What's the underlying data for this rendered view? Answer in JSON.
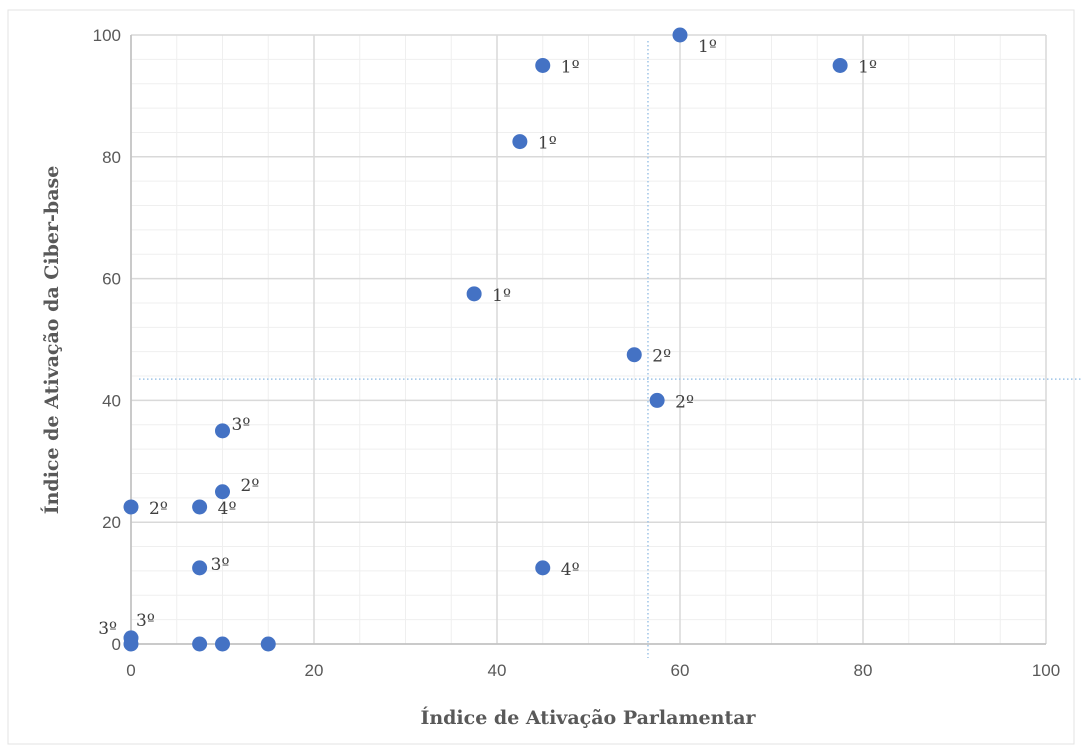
{
  "chart_data": {
    "type": "scatter",
    "title": "",
    "xlabel": "Índice de Ativação Parlamentar",
    "ylabel": "Índice  de Ativação da Ciber-base",
    "xlim": [
      0,
      100
    ],
    "ylim": [
      0,
      100
    ],
    "x_ticks": [
      "0",
      "20",
      "40",
      "60",
      "80",
      "100"
    ],
    "y_ticks": [
      "0",
      "20",
      "40",
      "60",
      "80",
      "100"
    ],
    "grid": true,
    "minor_grid": true,
    "point_color": "#4472c4",
    "reference_lines": {
      "x": 56.5,
      "y": 43.5,
      "color": "#9dc3e6"
    },
    "points": [
      {
        "x": 60,
        "y": 100,
        "label": "1º"
      },
      {
        "x": 45,
        "y": 95,
        "label": "1º"
      },
      {
        "x": 77.5,
        "y": 95,
        "label": "1º"
      },
      {
        "x": 42.5,
        "y": 82.5,
        "label": "1º"
      },
      {
        "x": 37.5,
        "y": 57.5,
        "label": "1º"
      },
      {
        "x": 55,
        "y": 47.5,
        "label": "2º"
      },
      {
        "x": 57.5,
        "y": 40,
        "label": "2º"
      },
      {
        "x": 10,
        "y": 35,
        "label": "3º"
      },
      {
        "x": 10,
        "y": 25,
        "label": "2º"
      },
      {
        "x": 0,
        "y": 22.5,
        "label": "2º"
      },
      {
        "x": 7.5,
        "y": 22.5,
        "label": "4º"
      },
      {
        "x": 7.5,
        "y": 12.5,
        "label": "3º"
      },
      {
        "x": 45,
        "y": 12.5,
        "label": "4º"
      },
      {
        "x": 0,
        "y": 1,
        "label": "3º"
      },
      {
        "x": 0,
        "y": 0,
        "label": "3º"
      },
      {
        "x": 7.5,
        "y": 0,
        "label": ""
      },
      {
        "x": 10,
        "y": 0,
        "label": ""
      },
      {
        "x": 15,
        "y": 0,
        "label": ""
      }
    ]
  }
}
